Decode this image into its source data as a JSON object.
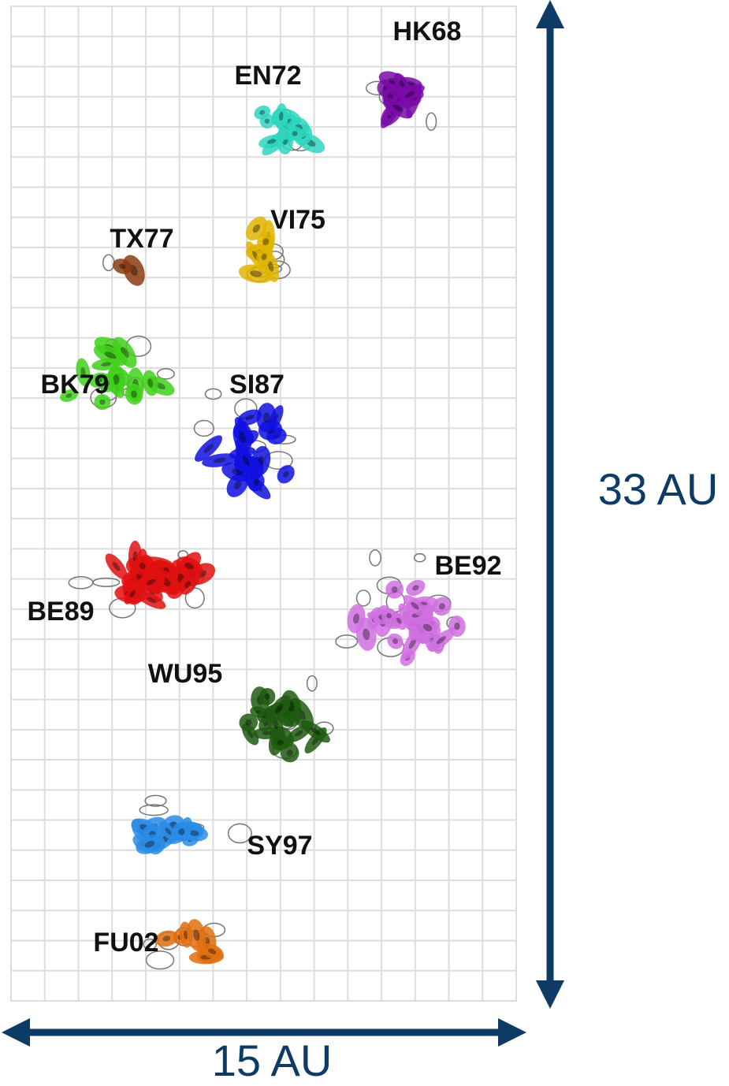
{
  "clusters": [
    "HK68",
    "EN72",
    "VI75",
    "TX77",
    "BK79",
    "SI87",
    "BE92",
    "BE89",
    "WU95",
    "SY97",
    "FU02"
  ],
  "scale": {
    "height": "33 AU",
    "width": "15 AU"
  }
}
